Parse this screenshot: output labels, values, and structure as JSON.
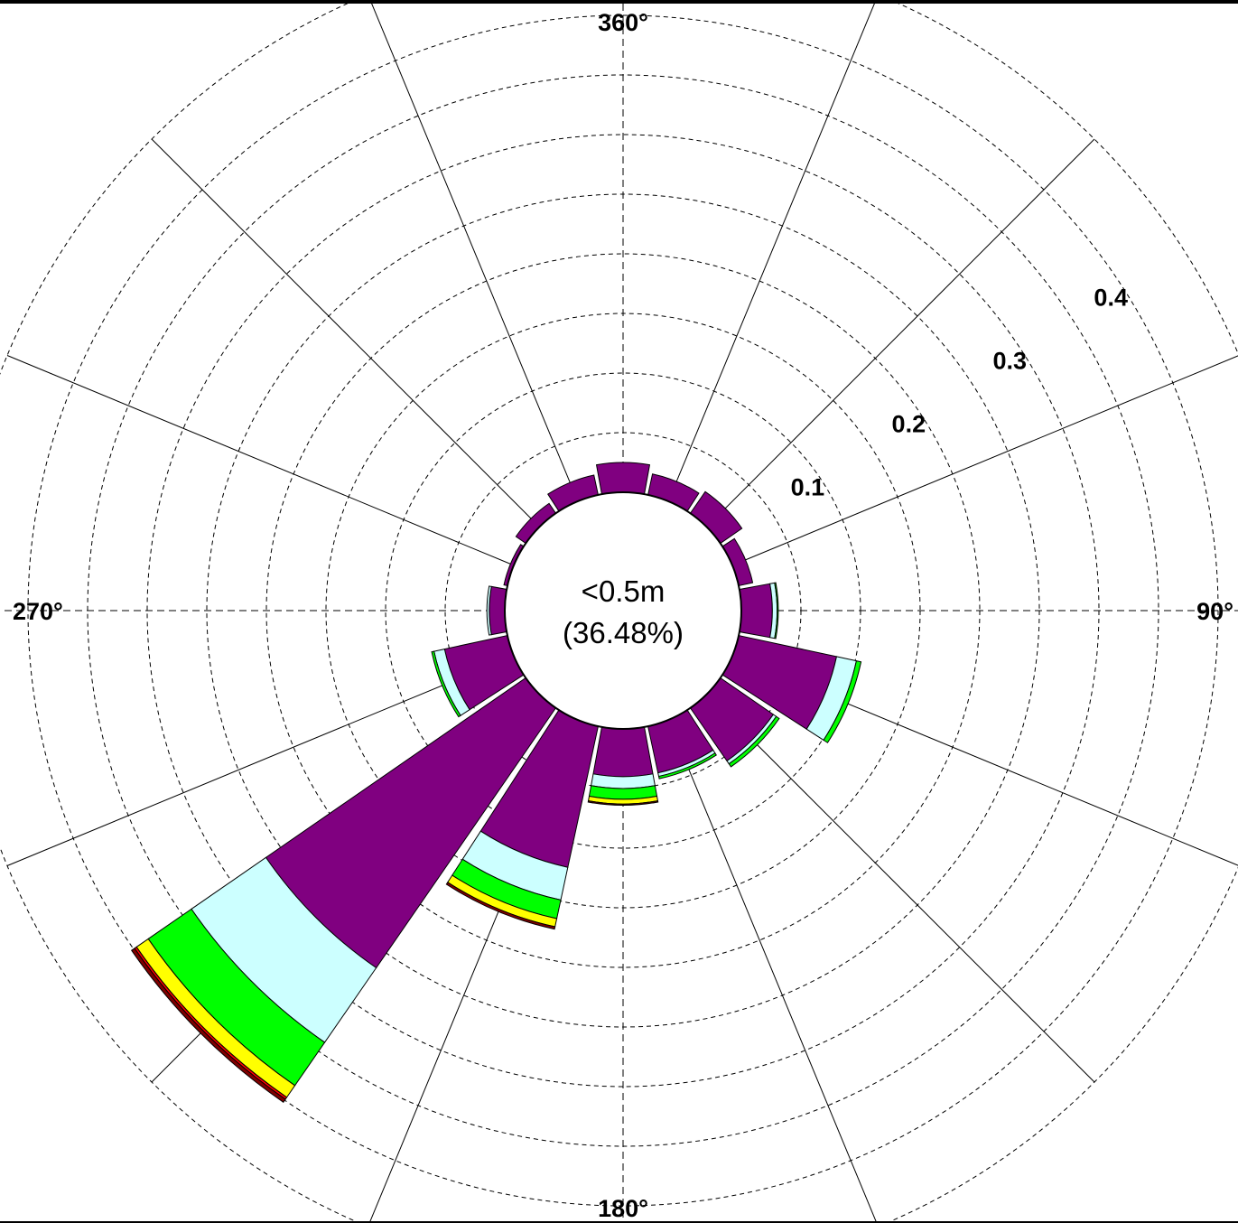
{
  "chart_data": {
    "type": "polar-bar",
    "title": "",
    "center_label": {
      "line1": "<0.5m",
      "line2": "(36.48%)"
    },
    "calm_fraction": 0.3648,
    "direction_labels": {
      "north": "360°",
      "east": "90°",
      "south": "180°",
      "west": "270°"
    },
    "radial_ticks": [
      {
        "value": 0.1,
        "label": "0.1"
      },
      {
        "value": 0.2,
        "label": "0.2"
      },
      {
        "value": 0.3,
        "label": "0.3"
      },
      {
        "value": 0.4,
        "label": "0.4"
      }
    ],
    "rlim": [
      0,
      0.46
    ],
    "grid": true,
    "sector_width_deg": 22.5,
    "band_colors": [
      "#800080",
      "#ccffff",
      "#00ff00",
      "#ffff00",
      "#ff0000",
      "#800000"
    ],
    "sectors": [
      {
        "direction": 0,
        "bands": [
          0.025,
          0.0,
          0.0,
          0.0,
          0.0,
          0.0
        ]
      },
      {
        "direction": 22.5,
        "bands": [
          0.018,
          0.0,
          0.0,
          0.0,
          0.0,
          0.0
        ]
      },
      {
        "direction": 45,
        "bands": [
          0.022,
          0.0,
          0.0,
          0.0,
          0.0,
          0.0
        ]
      },
      {
        "direction": 67.5,
        "bands": [
          0.012,
          0.0,
          0.0,
          0.0,
          0.0,
          0.0
        ]
      },
      {
        "direction": 90,
        "bands": [
          0.026,
          0.004,
          0.001,
          0.0,
          0.0,
          0.0
        ]
      },
      {
        "direction": 112.5,
        "bands": [
          0.084,
          0.017,
          0.004,
          0.0,
          0.0,
          0.0
        ]
      },
      {
        "direction": 135,
        "bands": [
          0.054,
          0.003,
          0.003,
          0.0,
          0.0,
          0.0
        ]
      },
      {
        "direction": 157.5,
        "bands": [
          0.04,
          0.003,
          0.002,
          0.0,
          0.0,
          0.0
        ]
      },
      {
        "direction": 180,
        "bands": [
          0.04,
          0.01,
          0.009,
          0.004,
          0.0,
          0.001
        ]
      },
      {
        "direction": 202.5,
        "bands": [
          0.121,
          0.028,
          0.016,
          0.007,
          0.0,
          0.002
        ]
      },
      {
        "direction": 225,
        "bands": [
          0.265,
          0.076,
          0.044,
          0.012,
          0.002,
          0.003
        ]
      },
      {
        "direction": 247.5,
        "bands": [
          0.054,
          0.009,
          0.002,
          0.0,
          0.0,
          0.0
        ]
      },
      {
        "direction": 270,
        "bands": [
          0.013,
          0.002,
          0.0,
          0.0,
          0.0,
          0.0
        ]
      },
      {
        "direction": 292.5,
        "bands": [
          0.003,
          0.0,
          0.0,
          0.0,
          0.0,
          0.0
        ]
      },
      {
        "direction": 315,
        "bands": [
          0.01,
          0.0,
          0.0,
          0.0,
          0.0,
          0.0
        ]
      },
      {
        "direction": 337.5,
        "bands": [
          0.017,
          0.0,
          0.0,
          0.0,
          0.0,
          0.0
        ]
      }
    ]
  }
}
